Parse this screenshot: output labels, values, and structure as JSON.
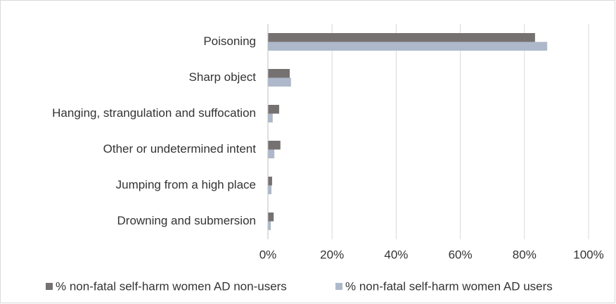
{
  "chart_data": {
    "type": "barh",
    "categories": [
      "Poisoning",
      "Sharp object",
      "Hanging, strangulation and suffocation",
      "Other or undetermined intent",
      "Jumping from a high place",
      "Drowning and submersion"
    ],
    "series": [
      {
        "name": "% non-fatal self-harm women AD non-users",
        "color": "#767171",
        "values": [
          83.3,
          6.8,
          3.5,
          3.9,
          1.3,
          1.8
        ]
      },
      {
        "name": "% non-fatal self-harm women AD users",
        "color": "#adb9ca",
        "values": [
          87.1,
          7.2,
          1.5,
          2.0,
          1.1,
          0.9
        ]
      }
    ],
    "xlim": [
      0,
      100
    ],
    "xticks": [
      {
        "value": 0,
        "label": "0%"
      },
      {
        "value": 20,
        "label": "20%"
      },
      {
        "value": 40,
        "label": "40%"
      },
      {
        "value": 60,
        "label": "60%"
      },
      {
        "value": 80,
        "label": "80%"
      },
      {
        "value": 100,
        "label": "100%"
      }
    ],
    "grid": true,
    "legend": "bottom"
  }
}
